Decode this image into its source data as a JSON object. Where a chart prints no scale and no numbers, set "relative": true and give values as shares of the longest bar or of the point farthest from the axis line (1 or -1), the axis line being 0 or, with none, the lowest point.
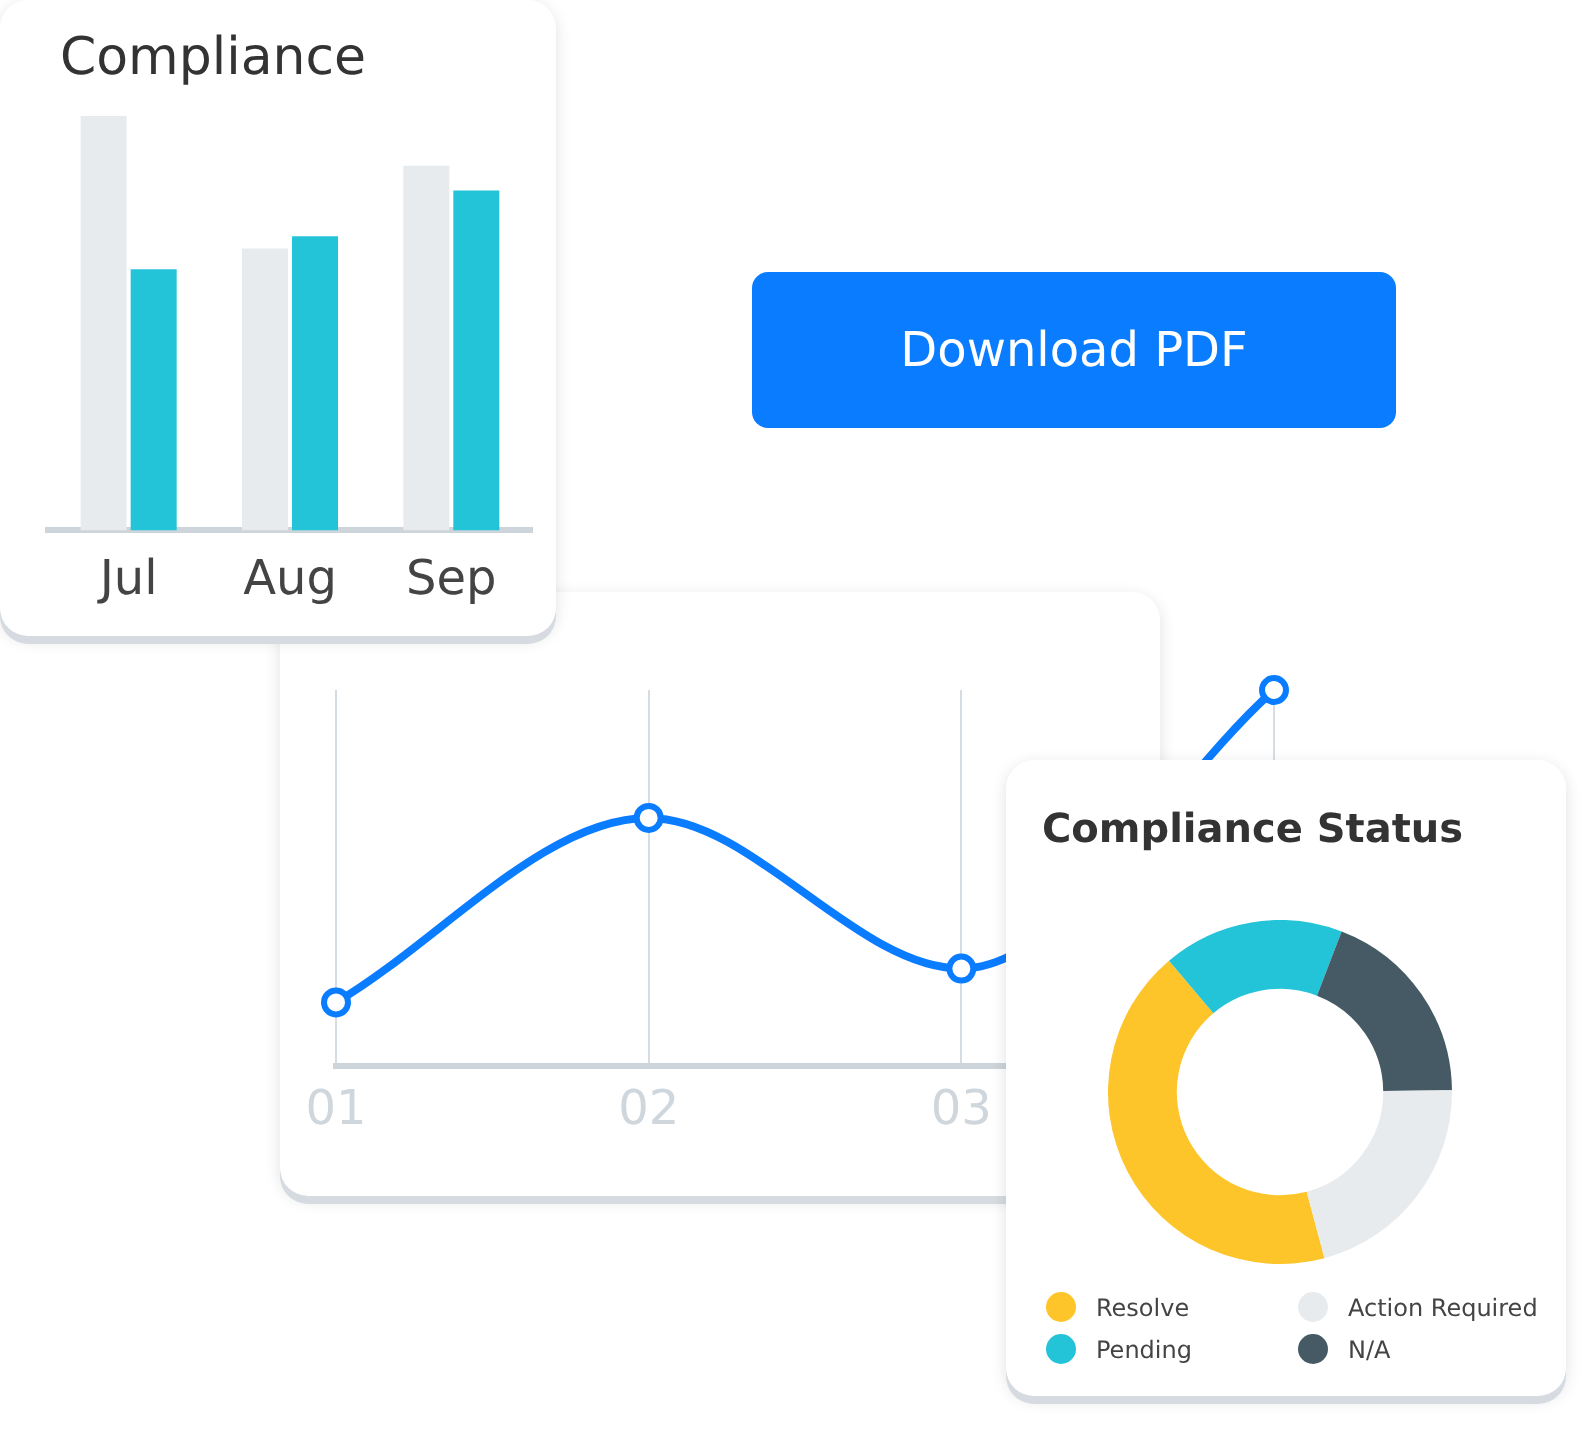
{
  "chart_data": [
    {
      "type": "bar",
      "title": "Compliance",
      "relative": true,
      "categories": [
        "Jul",
        "Aug",
        "Sep"
      ],
      "series": [
        {
          "color": "#e8ebee",
          "values": [
            1,
            0.68,
            0.88
          ]
        },
        {
          "color": "#24c4d8",
          "values": [
            0.63,
            0.71,
            0.82
          ]
        }
      ]
    },
    {
      "type": "other",
      "title": "Download PDF"
    },
    {
      "type": "line",
      "relative": true,
      "categories": [
        "01",
        "02",
        "03",
        null
      ],
      "grid": "x",
      "marker": "circle",
      "series": [
        {
          "color": "#0a7cff",
          "values": [
            0.17,
            0.66,
            0.26,
            1
          ]
        }
      ]
    },
    {
      "type": "donut",
      "title": "Compliance Status",
      "legend": "bottom",
      "categories": [
        "Resolve",
        "Pending",
        "N/A",
        "Action Required"
      ],
      "values": [
        43,
        17,
        19,
        21
      ],
      "colors": [
        "#fdc52a",
        "#24c4d8",
        "#455a64",
        "#e8ebee"
      ]
    }
  ]
}
